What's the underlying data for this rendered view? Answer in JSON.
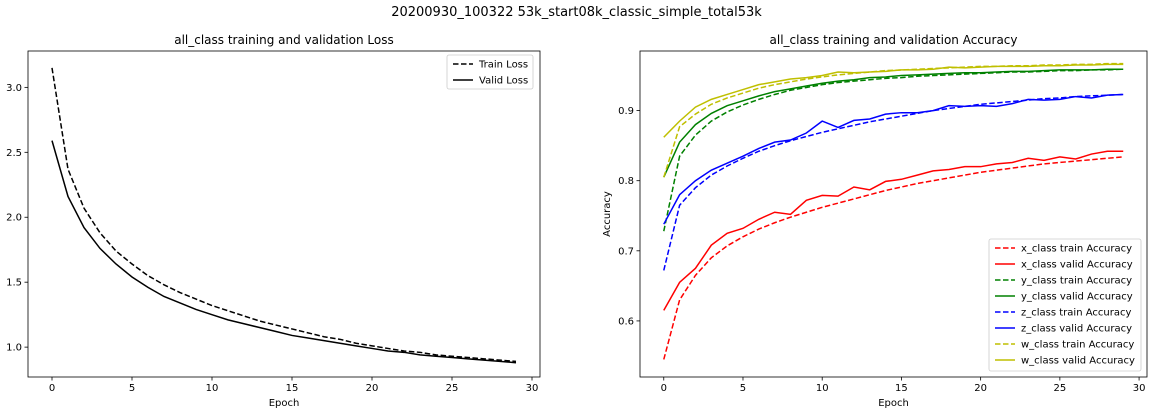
{
  "suptitle": "20200930_100322 53k_start08k_classic_simple_total53k",
  "chart_data": [
    {
      "type": "line",
      "title": "all_class training and validation Loss",
      "xlabel": "Epoch",
      "ylabel": "",
      "xlim": [
        -1.5,
        30.5
      ],
      "ylim": [
        0.77,
        3.28
      ],
      "xticks": [
        0,
        5,
        10,
        15,
        20,
        25,
        30
      ],
      "yticks": [
        1.0,
        1.5,
        2.0,
        2.5,
        3.0
      ],
      "ytick_labels": [
        "1.0",
        "1.5",
        "2.0",
        "2.5",
        "3.0"
      ],
      "grid": false,
      "legend": "top-right",
      "x": [
        0,
        1,
        2,
        3,
        4,
        5,
        6,
        7,
        8,
        9,
        10,
        11,
        12,
        13,
        14,
        15,
        16,
        17,
        18,
        19,
        20,
        21,
        22,
        23,
        24,
        25,
        26,
        27,
        28,
        29
      ],
      "series": [
        {
          "name": "Train Loss",
          "color": "#000000",
          "dash": "dashed",
          "values": [
            3.15,
            2.37,
            2.07,
            1.88,
            1.74,
            1.64,
            1.55,
            1.48,
            1.42,
            1.37,
            1.32,
            1.28,
            1.24,
            1.2,
            1.17,
            1.14,
            1.11,
            1.08,
            1.06,
            1.03,
            1.01,
            0.99,
            0.97,
            0.96,
            0.94,
            0.93,
            0.92,
            0.91,
            0.9,
            0.89
          ]
        },
        {
          "name": "Valid Loss",
          "color": "#000000",
          "dash": "solid",
          "values": [
            2.59,
            2.16,
            1.92,
            1.76,
            1.64,
            1.54,
            1.46,
            1.39,
            1.34,
            1.29,
            1.25,
            1.21,
            1.18,
            1.15,
            1.12,
            1.09,
            1.07,
            1.05,
            1.03,
            1.01,
            0.99,
            0.97,
            0.96,
            0.94,
            0.93,
            0.92,
            0.91,
            0.9,
            0.89,
            0.88
          ]
        }
      ]
    },
    {
      "type": "line",
      "title": "all_class training and validation Accuracy",
      "xlabel": "Epoch",
      "ylabel": "Accuracy",
      "xlim": [
        -1.5,
        30.5
      ],
      "ylim": [
        0.52,
        0.985
      ],
      "xticks": [
        0,
        5,
        10,
        15,
        20,
        25,
        30
      ],
      "yticks": [
        0.6,
        0.7,
        0.8,
        0.9
      ],
      "ytick_labels": [
        "0.6",
        "0.7",
        "0.8",
        "0.9"
      ],
      "grid": false,
      "legend": "bottom-right",
      "x": [
        0,
        1,
        2,
        3,
        4,
        5,
        6,
        7,
        8,
        9,
        10,
        11,
        12,
        13,
        14,
        15,
        16,
        17,
        18,
        19,
        20,
        21,
        22,
        23,
        24,
        25,
        26,
        27,
        28,
        29
      ],
      "series": [
        {
          "name": "x_class train Accuracy",
          "color": "#ff0000",
          "dash": "dashed",
          "values": [
            0.545,
            0.63,
            0.665,
            0.69,
            0.707,
            0.72,
            0.731,
            0.74,
            0.748,
            0.755,
            0.762,
            0.768,
            0.774,
            0.78,
            0.786,
            0.791,
            0.796,
            0.8,
            0.804,
            0.808,
            0.812,
            0.815,
            0.818,
            0.821,
            0.824,
            0.826,
            0.828,
            0.83,
            0.832,
            0.834
          ]
        },
        {
          "name": "x_class valid Accuracy",
          "color": "#ff0000",
          "dash": "solid",
          "values": [
            0.615,
            0.655,
            0.675,
            0.708,
            0.725,
            0.732,
            0.745,
            0.755,
            0.752,
            0.772,
            0.779,
            0.778,
            0.791,
            0.787,
            0.799,
            0.802,
            0.808,
            0.814,
            0.816,
            0.82,
            0.82,
            0.824,
            0.826,
            0.832,
            0.829,
            0.834,
            0.831,
            0.838,
            0.842,
            0.842
          ]
        },
        {
          "name": "y_class train Accuracy",
          "color": "#008000",
          "dash": "dashed",
          "values": [
            0.728,
            0.835,
            0.865,
            0.885,
            0.898,
            0.908,
            0.916,
            0.923,
            0.929,
            0.933,
            0.937,
            0.94,
            0.942,
            0.944,
            0.946,
            0.947,
            0.949,
            0.95,
            0.951,
            0.952,
            0.953,
            0.954,
            0.955,
            0.955,
            0.956,
            0.957,
            0.957,
            0.958,
            0.958,
            0.959
          ]
        },
        {
          "name": "y_class valid Accuracy",
          "color": "#008000",
          "dash": "solid",
          "values": [
            0.805,
            0.855,
            0.88,
            0.896,
            0.907,
            0.914,
            0.921,
            0.927,
            0.931,
            0.935,
            0.939,
            0.942,
            0.944,
            0.947,
            0.948,
            0.95,
            0.951,
            0.952,
            0.953,
            0.954,
            0.954,
            0.955,
            0.956,
            0.956,
            0.957,
            0.958,
            0.958,
            0.958,
            0.959,
            0.959
          ]
        },
        {
          "name": "z_class train Accuracy",
          "color": "#0000ff",
          "dash": "dashed",
          "values": [
            0.672,
            0.765,
            0.79,
            0.808,
            0.821,
            0.832,
            0.842,
            0.85,
            0.857,
            0.863,
            0.869,
            0.874,
            0.879,
            0.884,
            0.888,
            0.892,
            0.896,
            0.9,
            0.903,
            0.906,
            0.909,
            0.911,
            0.913,
            0.915,
            0.917,
            0.918,
            0.92,
            0.921,
            0.922,
            0.923
          ]
        },
        {
          "name": "z_class valid Accuracy",
          "color": "#0000ff",
          "dash": "solid",
          "values": [
            0.738,
            0.78,
            0.8,
            0.815,
            0.825,
            0.835,
            0.846,
            0.855,
            0.858,
            0.868,
            0.885,
            0.876,
            0.886,
            0.888,
            0.895,
            0.897,
            0.897,
            0.9,
            0.907,
            0.906,
            0.907,
            0.906,
            0.91,
            0.916,
            0.915,
            0.916,
            0.92,
            0.918,
            0.922,
            0.923
          ]
        },
        {
          "name": "w_class train Accuracy",
          "color": "#bfbf00",
          "dash": "dashed",
          "values": [
            0.805,
            0.877,
            0.895,
            0.909,
            0.918,
            0.925,
            0.932,
            0.937,
            0.941,
            0.945,
            0.948,
            0.951,
            0.953,
            0.955,
            0.957,
            0.958,
            0.959,
            0.96,
            0.961,
            0.962,
            0.963,
            0.963,
            0.964,
            0.964,
            0.965,
            0.965,
            0.966,
            0.966,
            0.967,
            0.967
          ]
        },
        {
          "name": "w_class valid Accuracy",
          "color": "#bfbf00",
          "dash": "solid",
          "values": [
            0.862,
            0.885,
            0.905,
            0.916,
            0.923,
            0.93,
            0.937,
            0.941,
            0.945,
            0.947,
            0.95,
            0.955,
            0.954,
            0.955,
            0.956,
            0.958,
            0.958,
            0.959,
            0.962,
            0.961,
            0.962,
            0.963,
            0.963,
            0.963,
            0.964,
            0.964,
            0.965,
            0.965,
            0.966,
            0.966
          ]
        }
      ]
    }
  ]
}
